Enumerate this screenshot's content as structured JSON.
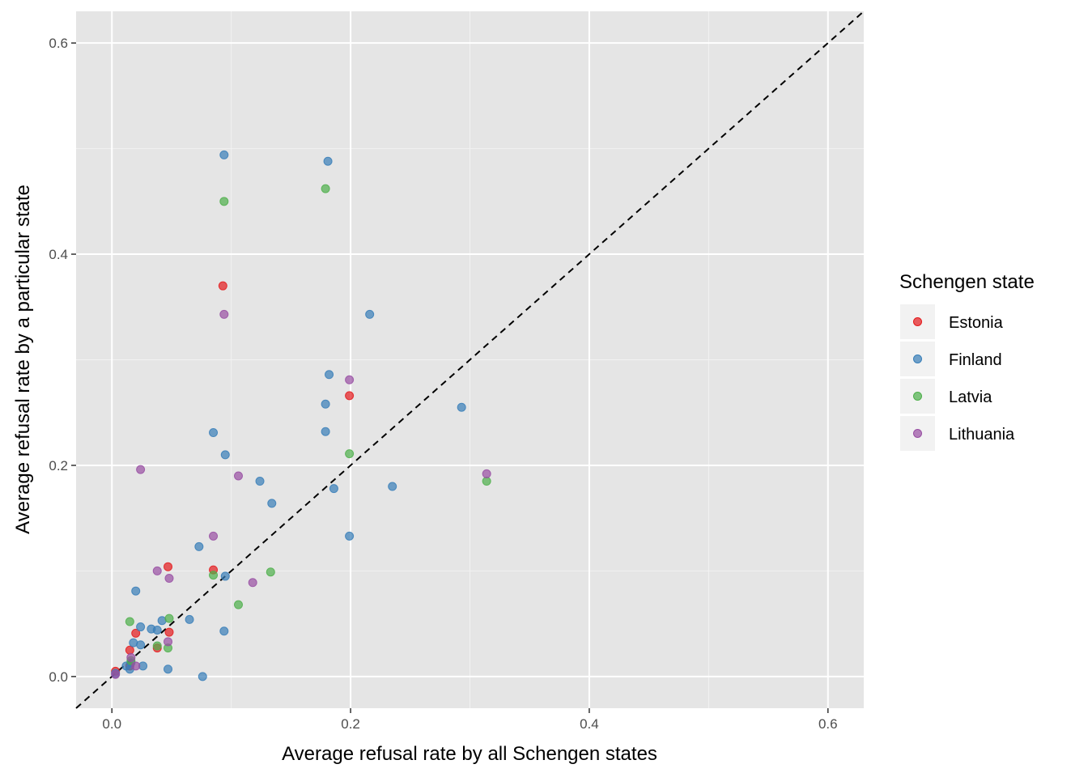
{
  "chart_data": {
    "type": "scatter",
    "title": "",
    "xlabel": "Average refusal rate by all Schengen states",
    "ylabel": "Average refusal rate by a particular state",
    "xlim": [
      -0.03,
      0.63
    ],
    "ylim": [
      -0.03,
      0.63
    ],
    "x_ticks": [
      0.0,
      0.2,
      0.4,
      0.6
    ],
    "y_ticks": [
      0.0,
      0.2,
      0.4,
      0.6
    ],
    "x_tick_labels": [
      "0.0",
      "0.2",
      "0.4",
      "0.6"
    ],
    "y_tick_labels": [
      "0.0",
      "0.2",
      "0.4",
      "0.6"
    ],
    "grid": true,
    "background": "#e5e5e5",
    "reference_line": {
      "type": "identity",
      "style": "dashed",
      "color": "#000000"
    },
    "legend": {
      "title": "Schengen state",
      "position": "right"
    },
    "series": [
      {
        "name": "Estonia",
        "color": "#e41a1c",
        "points": [
          [
            0.003,
            0.005
          ],
          [
            0.015,
            0.025
          ],
          [
            0.02,
            0.041
          ],
          [
            0.038,
            0.027
          ],
          [
            0.047,
            0.104
          ],
          [
            0.048,
            0.042
          ],
          [
            0.085,
            0.101
          ],
          [
            0.093,
            0.37
          ],
          [
            0.199,
            0.266
          ],
          [
            0.015,
            0.01
          ]
        ]
      },
      {
        "name": "Finland",
        "color": "#377eb8",
        "points": [
          [
            0.094,
            0.494
          ],
          [
            0.181,
            0.488
          ],
          [
            0.216,
            0.343
          ],
          [
            0.182,
            0.286
          ],
          [
            0.179,
            0.258
          ],
          [
            0.293,
            0.255
          ],
          [
            0.085,
            0.231
          ],
          [
            0.179,
            0.232
          ],
          [
            0.095,
            0.21
          ],
          [
            0.124,
            0.185
          ],
          [
            0.186,
            0.178
          ],
          [
            0.235,
            0.18
          ],
          [
            0.134,
            0.164
          ],
          [
            0.199,
            0.133
          ],
          [
            0.073,
            0.123
          ],
          [
            0.095,
            0.095
          ],
          [
            0.02,
            0.081
          ],
          [
            0.065,
            0.054
          ],
          [
            0.042,
            0.053
          ],
          [
            0.024,
            0.047
          ],
          [
            0.033,
            0.045
          ],
          [
            0.038,
            0.044
          ],
          [
            0.094,
            0.043
          ],
          [
            0.018,
            0.032
          ],
          [
            0.024,
            0.03
          ],
          [
            0.026,
            0.01
          ],
          [
            0.047,
            0.007
          ],
          [
            0.076,
            0.0
          ],
          [
            0.012,
            0.01
          ],
          [
            0.015,
            0.007
          ],
          [
            0.016,
            0.013
          ],
          [
            0.003,
            0.003
          ]
        ]
      },
      {
        "name": "Latvia",
        "color": "#4daf4a",
        "points": [
          [
            0.094,
            0.45
          ],
          [
            0.179,
            0.462
          ],
          [
            0.199,
            0.211
          ],
          [
            0.314,
            0.185
          ],
          [
            0.133,
            0.099
          ],
          [
            0.085,
            0.096
          ],
          [
            0.106,
            0.068
          ],
          [
            0.048,
            0.055
          ],
          [
            0.015,
            0.052
          ],
          [
            0.038,
            0.029
          ],
          [
            0.047,
            0.027
          ],
          [
            0.016,
            0.015
          ]
        ]
      },
      {
        "name": "Lithuania",
        "color": "#984ea3",
        "points": [
          [
            0.094,
            0.343
          ],
          [
            0.199,
            0.281
          ],
          [
            0.314,
            0.192
          ],
          [
            0.024,
            0.196
          ],
          [
            0.106,
            0.19
          ],
          [
            0.085,
            0.133
          ],
          [
            0.038,
            0.1
          ],
          [
            0.048,
            0.093
          ],
          [
            0.118,
            0.089
          ],
          [
            0.047,
            0.033
          ],
          [
            0.016,
            0.018
          ],
          [
            0.02,
            0.01
          ],
          [
            0.003,
            0.002
          ]
        ]
      }
    ]
  }
}
